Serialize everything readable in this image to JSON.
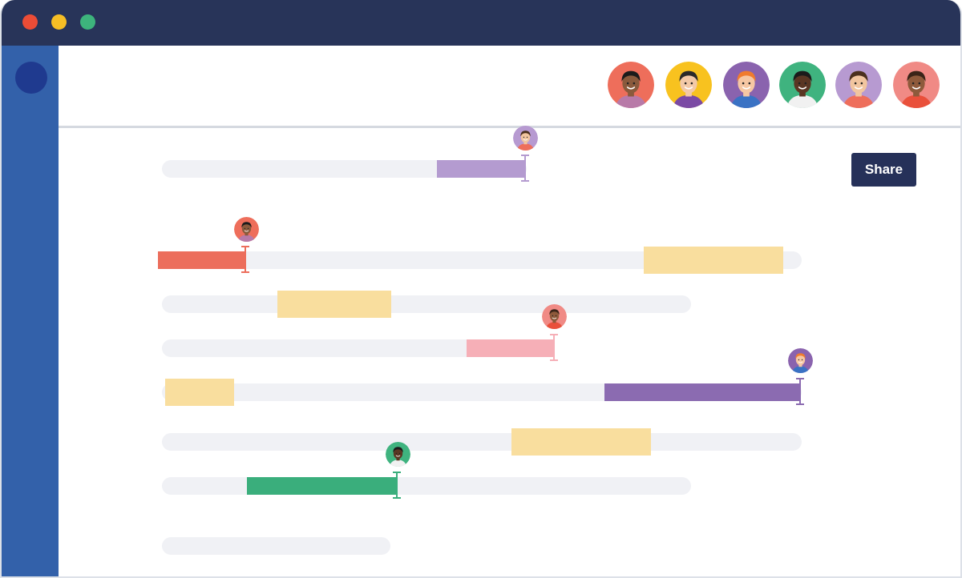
{
  "window": {
    "traffic_lights": [
      {
        "name": "close",
        "color": "#ec4c36"
      },
      {
        "name": "minimize",
        "color": "#f6be25"
      },
      {
        "name": "maximize",
        "color": "#3db47c"
      }
    ]
  },
  "toolbar": {
    "share_label": "Share"
  },
  "collaborators": [
    {
      "bg": "#ee6e5b",
      "skin": "#8a5a3c",
      "hair": "#1b1b1b",
      "shirt": "#b87aa8"
    },
    {
      "bg": "#f8c21f",
      "skin": "#f3c9a7",
      "hair": "#2a2a2a",
      "shirt": "#7b4aa4"
    },
    {
      "bg": "#8a63ae",
      "skin": "#f6c7a3",
      "hair": "#f07b2e",
      "shirt": "#3a72c4"
    },
    {
      "bg": "#3fb37f",
      "skin": "#5a3623",
      "hair": "#1b1b1b",
      "shirt": "#f1f1f1"
    },
    {
      "bg": "#b79ad1",
      "skin": "#f1c59f",
      "hair": "#4a2f1d",
      "shirt": "#ee6e5b"
    },
    {
      "bg": "#f08a85",
      "skin": "#8e5a3b",
      "hair": "#3a2418",
      "shirt": "#e9503b"
    }
  ],
  "colors": {
    "accent_navy": "#283459",
    "sidebar": "#3361aa",
    "track": "#f0f1f5",
    "highlight": "#f9dc99"
  }
}
